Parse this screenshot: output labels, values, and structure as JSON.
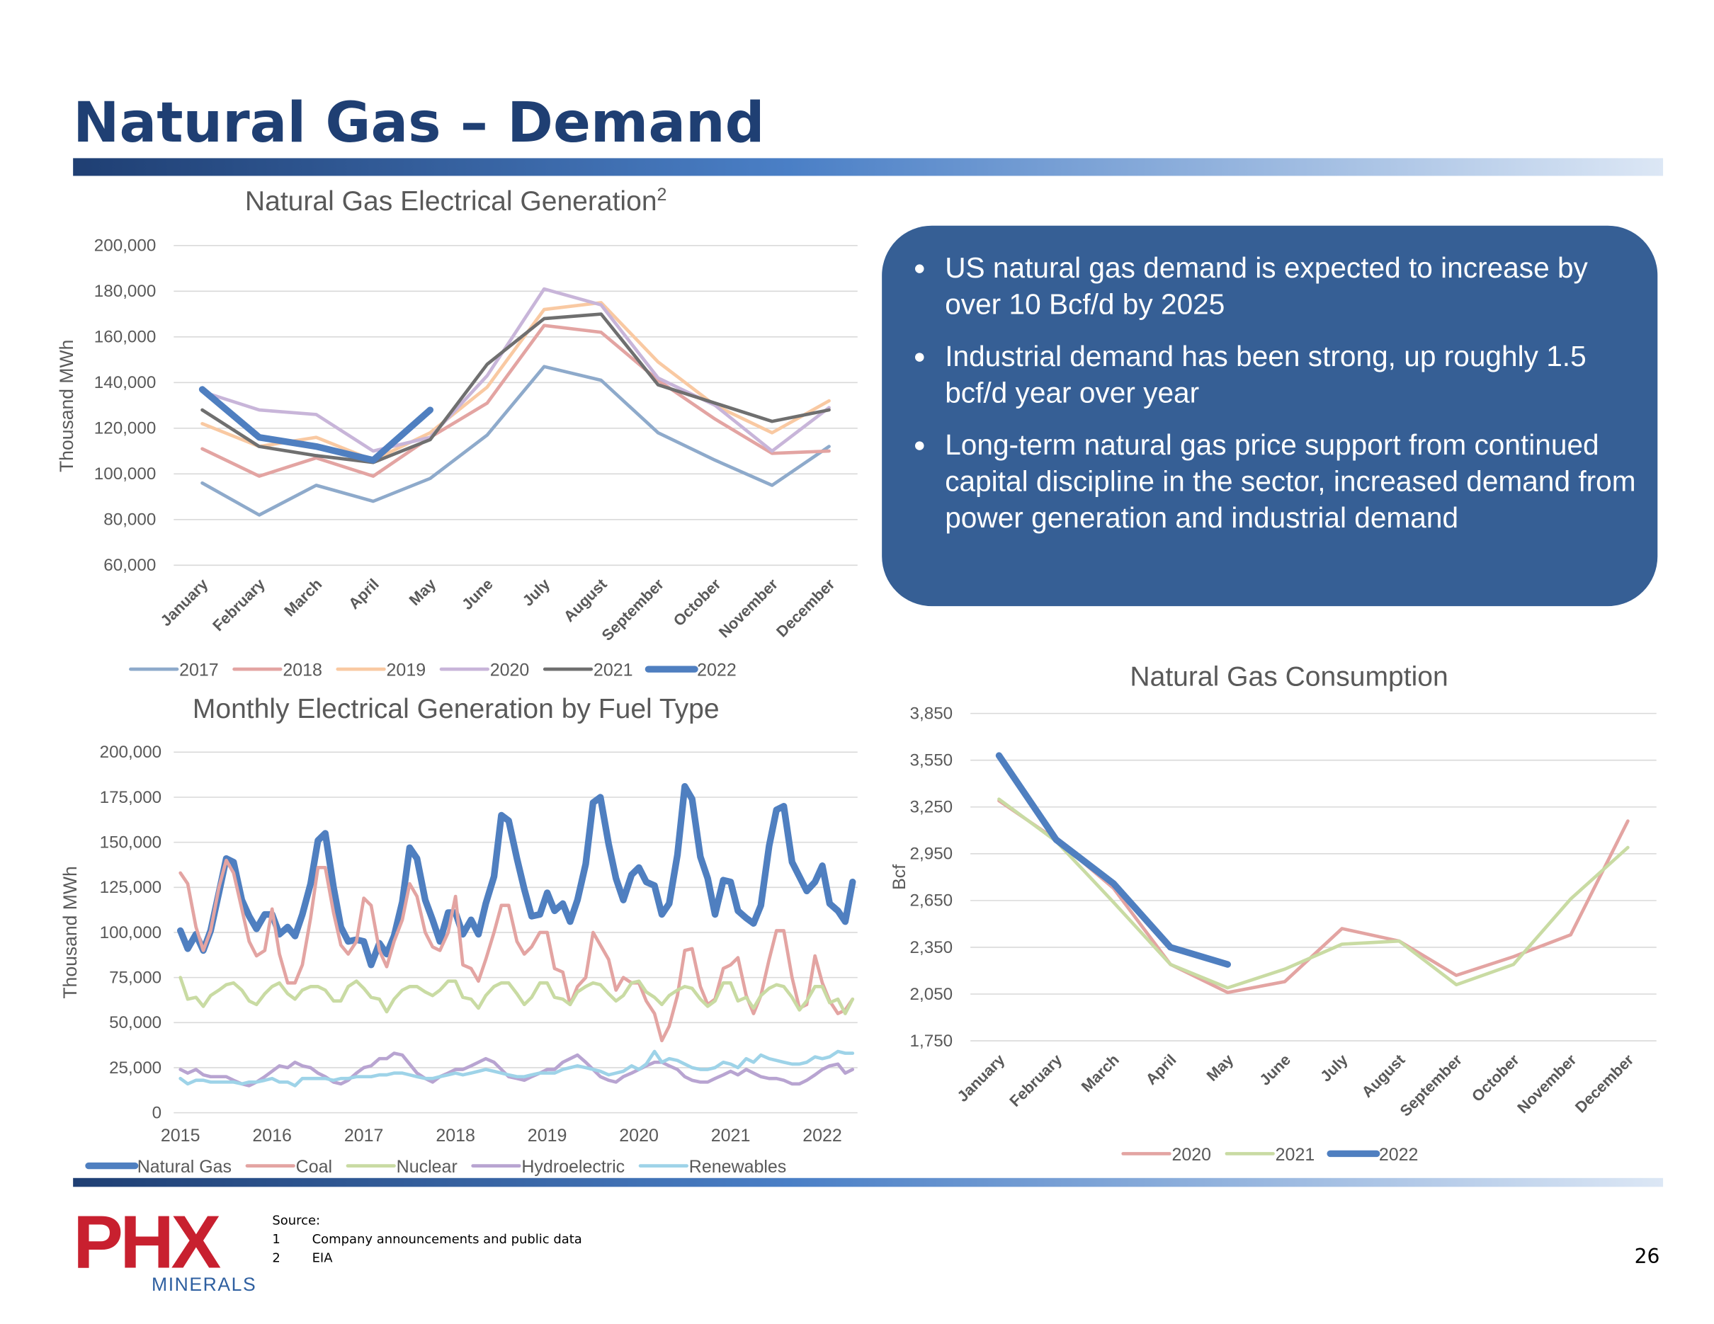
{
  "title": "Natural Gas – Demand",
  "bullets": [
    "US natural gas demand is expected to increase by over 10 Bcf/d by 2025",
    "Industrial demand has been strong, up roughly 1.5 bcf/d year over year",
    "Long-term natural gas price support from continued capital discipline in the sector, increased demand from power generation and industrial demand"
  ],
  "source": {
    "heading": "Source:",
    "items": [
      {
        "number": "1",
        "text": "Company announcements and public data"
      },
      {
        "number": "2",
        "text": "EIA"
      }
    ]
  },
  "logo": {
    "name": "PHX",
    "tagline": "MINERALS"
  },
  "page_number": "26",
  "chart_data": [
    {
      "type": "line",
      "title": "Natural Gas Electrical Generation",
      "title_note": "2",
      "y_label": "Thousand MWh",
      "categories": [
        "January",
        "February",
        "March",
        "April",
        "May",
        "June",
        "July",
        "August",
        "September",
        "October",
        "November",
        "December"
      ],
      "ylim": [
        60000,
        200000
      ],
      "yticks": [
        {
          "value": 60000,
          "label": "60,000"
        },
        {
          "value": 80000,
          "label": "80,000"
        },
        {
          "value": 100000,
          "label": "100,000"
        },
        {
          "value": 120000,
          "label": "120,000"
        },
        {
          "value": 140000,
          "label": "140,000"
        },
        {
          "value": 160000,
          "label": "160,000"
        },
        {
          "value": 180000,
          "label": "180,000"
        },
        {
          "value": 200000,
          "label": "200,000"
        }
      ],
      "grid": true,
      "series": [
        {
          "name": "2017",
          "color": "#8eaacb",
          "values": [
            96000,
            82000,
            95000,
            88000,
            98000,
            117000,
            147000,
            141000,
            118000,
            106000,
            95000,
            112000
          ]
        },
        {
          "name": "2018",
          "color": "#e3a4a2",
          "values": [
            111000,
            99000,
            107000,
            99000,
            116000,
            131000,
            165000,
            162000,
            141000,
            124000,
            109000,
            110000
          ]
        },
        {
          "name": "2019",
          "color": "#f9c9a2",
          "values": [
            122000,
            112000,
            116000,
            106000,
            118000,
            138000,
            172000,
            175000,
            149000,
            130000,
            118000,
            132000
          ]
        },
        {
          "name": "2020",
          "color": "#c8b5d9",
          "values": [
            136000,
            128000,
            126000,
            110000,
            116000,
            143000,
            181000,
            174000,
            142000,
            130000,
            110000,
            129000
          ]
        },
        {
          "name": "2021",
          "color": "#6f6f6f",
          "values": [
            128000,
            112000,
            108000,
            105000,
            115000,
            148000,
            168000,
            170000,
            139000,
            131000,
            123000,
            128000
          ]
        },
        {
          "name": "2022",
          "color": "#4f7fc0",
          "values": [
            137000,
            116000,
            112000,
            106000,
            128000,
            null,
            null,
            null,
            null,
            null,
            null,
            null
          ]
        }
      ]
    },
    {
      "type": "line",
      "title": "Monthly Electrical Generation by Fuel Type",
      "y_label": "Thousand MWh",
      "x": [
        2015,
        2015.08,
        2015.17,
        2015.25,
        2015.33,
        2015.42,
        2015.5,
        2015.58,
        2015.67,
        2015.75,
        2015.83,
        2015.92,
        2016,
        2016.08,
        2016.17,
        2016.25,
        2016.33,
        2016.42,
        2016.5,
        2016.58,
        2016.67,
        2016.75,
        2016.83,
        2016.92,
        2017,
        2017.08,
        2017.17,
        2017.25,
        2017.33,
        2017.42,
        2017.5,
        2017.58,
        2017.67,
        2017.75,
        2017.83,
        2017.92,
        2018,
        2018.08,
        2018.17,
        2018.25,
        2018.33,
        2018.42,
        2018.5,
        2018.58,
        2018.67,
        2018.75,
        2018.83,
        2018.92,
        2019,
        2019.08,
        2019.17,
        2019.25,
        2019.33,
        2019.42,
        2019.5,
        2019.58,
        2019.67,
        2019.75,
        2019.83,
        2019.92,
        2020,
        2020.08,
        2020.17,
        2020.25,
        2020.33,
        2020.42,
        2020.5,
        2020.58,
        2020.67,
        2020.75,
        2020.83,
        2020.92,
        2021,
        2021.08,
        2021.17,
        2021.25,
        2021.33,
        2021.42,
        2021.5,
        2021.58,
        2021.67,
        2021.75,
        2021.83,
        2021.92,
        2022,
        2022.08,
        2022.17,
        2022.25,
        2022.33
      ],
      "xlim": [
        2015,
        2022.36
      ],
      "xticks": [
        2015,
        2016,
        2017,
        2018,
        2019,
        2020,
        2021,
        2022
      ],
      "ylim": [
        0,
        200000
      ],
      "yticks": [
        0,
        {
          "value": 25000,
          "label": "25,000"
        },
        {
          "value": 50000,
          "label": "50,000"
        },
        {
          "value": 75000,
          "label": "75,000"
        },
        {
          "value": 100000,
          "label": "100,000"
        },
        {
          "value": 125000,
          "label": "125,000"
        },
        {
          "value": 150000,
          "label": "150,000"
        },
        {
          "value": 175000,
          "label": "175,000"
        },
        {
          "value": 200000,
          "label": "200,000"
        }
      ],
      "grid": true,
      "series": [
        {
          "name": "Natural Gas",
          "color": "#4f7fc0",
          "values": [
            101000,
            91000,
            99000,
            90000,
            101000,
            122000,
            141000,
            139000,
            118000,
            109000,
            102000,
            110000,
            110000,
            99000,
            103000,
            98000,
            110000,
            127000,
            151000,
            155000,
            125000,
            103000,
            95000,
            96000,
            95000,
            82000,
            94000,
            88000,
            98000,
            117000,
            147000,
            141000,
            118000,
            107000,
            95000,
            111000,
            111000,
            99000,
            107000,
            99000,
            116000,
            131000,
            165000,
            162000,
            141000,
            124000,
            109000,
            110000,
            122000,
            112000,
            116000,
            106000,
            118000,
            138000,
            172000,
            175000,
            149000,
            130000,
            118000,
            132000,
            136000,
            128000,
            126000,
            110000,
            116000,
            143000,
            181000,
            174000,
            142000,
            130000,
            110000,
            129000,
            128000,
            112000,
            108000,
            105000,
            115000,
            148000,
            168000,
            170000,
            139000,
            131000,
            123000,
            128000,
            137000,
            116000,
            112000,
            106000,
            128000
          ]
        },
        {
          "name": "Coal",
          "color": "#e3a4a2",
          "values": [
            133000,
            127000,
            103000,
            90000,
            101000,
            125000,
            140000,
            133000,
            113000,
            95000,
            87000,
            90000,
            113000,
            88000,
            72000,
            72000,
            82000,
            108000,
            136000,
            136000,
            111000,
            93000,
            88000,
            95000,
            119000,
            115000,
            90000,
            81000,
            95000,
            107000,
            127000,
            120000,
            100000,
            92000,
            90000,
            100000,
            120000,
            82000,
            80000,
            73000,
            85000,
            100000,
            115000,
            115000,
            95000,
            88000,
            92000,
            100000,
            100000,
            80000,
            78000,
            60000,
            70000,
            75000,
            100000,
            93000,
            85000,
            68000,
            75000,
            72000,
            72000,
            62000,
            55000,
            40000,
            48000,
            65000,
            90000,
            91000,
            70000,
            60000,
            63000,
            80000,
            82000,
            86000,
            65000,
            55000,
            65000,
            85000,
            101000,
            101000,
            75000,
            58000,
            60000,
            87000,
            72000,
            62000,
            55000,
            57000,
            63000
          ]
        },
        {
          "name": "Nuclear",
          "color": "#c9dba3",
          "values": [
            75000,
            63000,
            64000,
            59000,
            65000,
            68000,
            71000,
            72000,
            68000,
            62000,
            60000,
            66000,
            70000,
            72000,
            66000,
            63000,
            68000,
            70000,
            70000,
            68000,
            62000,
            62000,
            70000,
            73000,
            69000,
            64000,
            63000,
            56000,
            63000,
            68000,
            70000,
            70000,
            67000,
            65000,
            68000,
            73000,
            73000,
            64000,
            63000,
            58000,
            65000,
            70000,
            72000,
            72000,
            66000,
            60000,
            64000,
            72000,
            72000,
            64000,
            63000,
            60000,
            67000,
            70000,
            72000,
            71000,
            66000,
            62000,
            65000,
            72000,
            73000,
            67000,
            64000,
            60000,
            65000,
            68000,
            70000,
            69000,
            63000,
            59000,
            62000,
            72000,
            72000,
            62000,
            64000,
            58000,
            65000,
            69000,
            71000,
            70000,
            64000,
            57000,
            62000,
            70000,
            70000,
            61000,
            63000,
            55000,
            63000
          ]
        },
        {
          "name": "Hydroelectric",
          "color": "#b8a4d1",
          "values": [
            24000,
            22000,
            24000,
            21000,
            20000,
            20000,
            20000,
            18000,
            16000,
            15000,
            17000,
            20000,
            23000,
            26000,
            25000,
            28000,
            26000,
            25000,
            22000,
            20000,
            17000,
            16000,
            18000,
            22000,
            25000,
            26000,
            30000,
            30000,
            33000,
            32000,
            27000,
            22000,
            19000,
            17000,
            20000,
            22000,
            24000,
            24000,
            26000,
            28000,
            30000,
            28000,
            24000,
            20000,
            19000,
            18000,
            20000,
            22000,
            24000,
            24000,
            28000,
            30000,
            32000,
            28000,
            24000,
            20000,
            18000,
            17000,
            20000,
            22000,
            24000,
            26000,
            28000,
            28000,
            26000,
            24000,
            20000,
            18000,
            17000,
            17000,
            19000,
            21000,
            23000,
            21000,
            24000,
            22000,
            20000,
            19000,
            19000,
            18000,
            16000,
            16000,
            18000,
            21000,
            24000,
            26000,
            27000,
            22000,
            24000
          ]
        },
        {
          "name": "Renewables",
          "color": "#9ed3e8",
          "values": [
            19000,
            16000,
            18000,
            18000,
            17000,
            17000,
            17000,
            17000,
            16000,
            17000,
            17000,
            18000,
            19000,
            17000,
            17000,
            15000,
            19000,
            19000,
            19000,
            19000,
            18000,
            19000,
            19000,
            20000,
            20000,
            20000,
            21000,
            21000,
            22000,
            22000,
            21000,
            20000,
            19000,
            19000,
            20000,
            21000,
            22000,
            21000,
            22000,
            23000,
            24000,
            23000,
            22000,
            21000,
            20000,
            20000,
            21000,
            22000,
            22000,
            22000,
            24000,
            25000,
            26000,
            25000,
            24000,
            23000,
            21000,
            22000,
            23000,
            26000,
            24000,
            27000,
            34000,
            28000,
            30000,
            29000,
            27000,
            25000,
            24000,
            24000,
            25000,
            28000,
            27000,
            25000,
            30000,
            28000,
            32000,
            30000,
            29000,
            28000,
            27000,
            27000,
            28000,
            31000,
            30000,
            31000,
            34000,
            33000,
            33000
          ]
        }
      ]
    },
    {
      "type": "line",
      "title": "Natural Gas Consumption",
      "y_label": "Bcf",
      "categories": [
        "January",
        "February",
        "March",
        "April",
        "May",
        "June",
        "July",
        "August",
        "September",
        "October",
        "November",
        "December"
      ],
      "ylim": [
        1750,
        3850
      ],
      "yticks": [
        {
          "value": 1750,
          "label": "1,750"
        },
        {
          "value": 2050,
          "label": "2,050"
        },
        {
          "value": 2350,
          "label": "2,350"
        },
        {
          "value": 2650,
          "label": "2,650"
        },
        {
          "value": 2950,
          "label": "2,950"
        },
        {
          "value": 3250,
          "label": "3,250"
        },
        {
          "value": 3550,
          "label": "3,550"
        },
        {
          "value": 3850,
          "label": "3,850"
        }
      ],
      "grid": true,
      "series": [
        {
          "name": "2020",
          "color": "#e3a4a2",
          "values": [
            3290,
            3040,
            2730,
            2240,
            2060,
            2130,
            2470,
            2390,
            2170,
            2290,
            2430,
            3160
          ]
        },
        {
          "name": "2021",
          "color": "#c9dba3",
          "values": [
            3300,
            3030,
            2640,
            2240,
            2090,
            2210,
            2370,
            2390,
            2110,
            2240,
            2660,
            2990
          ]
        },
        {
          "name": "2022",
          "color": "#4f7fc0",
          "values": [
            3580,
            3040,
            2760,
            2350,
            2240,
            null,
            null,
            null,
            null,
            null,
            null,
            null
          ]
        }
      ]
    }
  ]
}
